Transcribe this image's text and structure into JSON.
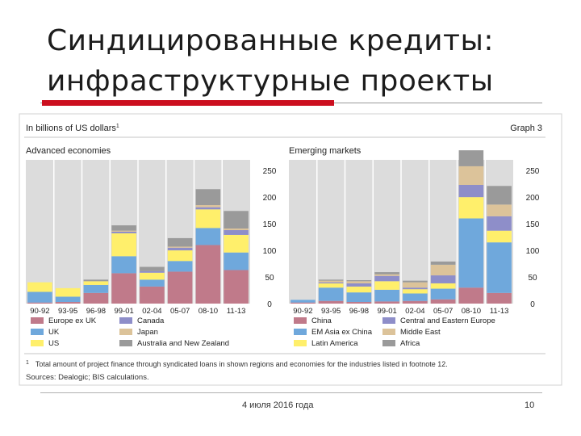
{
  "slide": {
    "title_line1": "Синдицированные кредиты:",
    "title_line2": "инфраструктурные проекты",
    "footer_date": "4 июля 2016 года",
    "footer_page": "10"
  },
  "colors": {
    "accent_red": "#cc0f1f",
    "panel_bg": "#dcdcdc",
    "Europe ex UK": "#c07a8a",
    "UK": "#6fa8dc",
    "US": "#ffef6b",
    "Canada": "#8e8ec9",
    "Japan": "#dcc39a",
    "Australia and New Zealand": "#9a9a9a",
    "China": "#c07a8a",
    "EM Asia ex China": "#6fa8dc",
    "Latin America": "#ffef6b",
    "Central and Eastern Europe": "#8e8ec9",
    "Middle East": "#dcc39a",
    "Africa": "#9a9a9a"
  },
  "figure": {
    "unit_label": "In billions of US dollars",
    "unit_sup": "1",
    "graph_label": "Graph 3",
    "footnote_mark": "1",
    "footnote": "Total amount of project finance through syndicated loans in shown regions and economies for the industries listed in footnote 12.",
    "sources": "Sources: Dealogic; BIS calculations."
  },
  "chart_data": [
    {
      "type": "bar",
      "stacked": true,
      "title": "Advanced economies",
      "categories": [
        "90-92",
        "93-95",
        "96-98",
        "99-01",
        "02-04",
        "05-07",
        "08-10",
        "11-13"
      ],
      "ylim": [
        0,
        270
      ],
      "yticks": [
        0,
        50,
        100,
        150,
        200,
        250
      ],
      "y_axis_side": "right",
      "grid": false,
      "legend": "bottom",
      "series": [
        {
          "name": "Europe ex UK",
          "values": [
            2,
            3,
            20,
            57,
            32,
            60,
            110,
            63
          ]
        },
        {
          "name": "UK",
          "values": [
            20,
            10,
            15,
            32,
            13,
            20,
            32,
            33
          ]
        },
        {
          "name": "US",
          "values": [
            18,
            16,
            7,
            43,
            13,
            20,
            35,
            33
          ]
        },
        {
          "name": "Canada",
          "values": [
            0,
            0,
            0,
            3,
            3,
            5,
            4,
            9
          ]
        },
        {
          "name": "Japan",
          "values": [
            0,
            0,
            0,
            2,
            0,
            2,
            4,
            3
          ]
        },
        {
          "name": "Australia and New Zealand",
          "values": [
            0,
            0,
            3,
            10,
            8,
            16,
            30,
            33
          ]
        }
      ]
    },
    {
      "type": "bar",
      "stacked": true,
      "title": "Emerging markets",
      "categories": [
        "90-92",
        "93-95",
        "96-98",
        "99-01",
        "02-04",
        "05-07",
        "08-10",
        "11-13"
      ],
      "ylim": [
        0,
        270
      ],
      "yticks": [
        0,
        50,
        100,
        150,
        200,
        250
      ],
      "y_axis_side": "right",
      "grid": false,
      "legend": "bottom",
      "series": [
        {
          "name": "China",
          "values": [
            2,
            5,
            3,
            4,
            5,
            8,
            30,
            20
          ]
        },
        {
          "name": "EM Asia ex China",
          "values": [
            5,
            25,
            18,
            22,
            14,
            20,
            130,
            95
          ]
        },
        {
          "name": "Latin America",
          "values": [
            0,
            8,
            11,
            16,
            8,
            10,
            40,
            22
          ]
        },
        {
          "name": "Central and Eastern Europe",
          "values": [
            0,
            2,
            6,
            10,
            3,
            15,
            23,
            27
          ]
        },
        {
          "name": "Middle East",
          "values": [
            0,
            3,
            4,
            3,
            10,
            20,
            35,
            22
          ]
        },
        {
          "name": "Africa",
          "values": [
            0,
            2,
            2,
            4,
            3,
            6,
            30,
            35
          ]
        }
      ]
    }
  ]
}
